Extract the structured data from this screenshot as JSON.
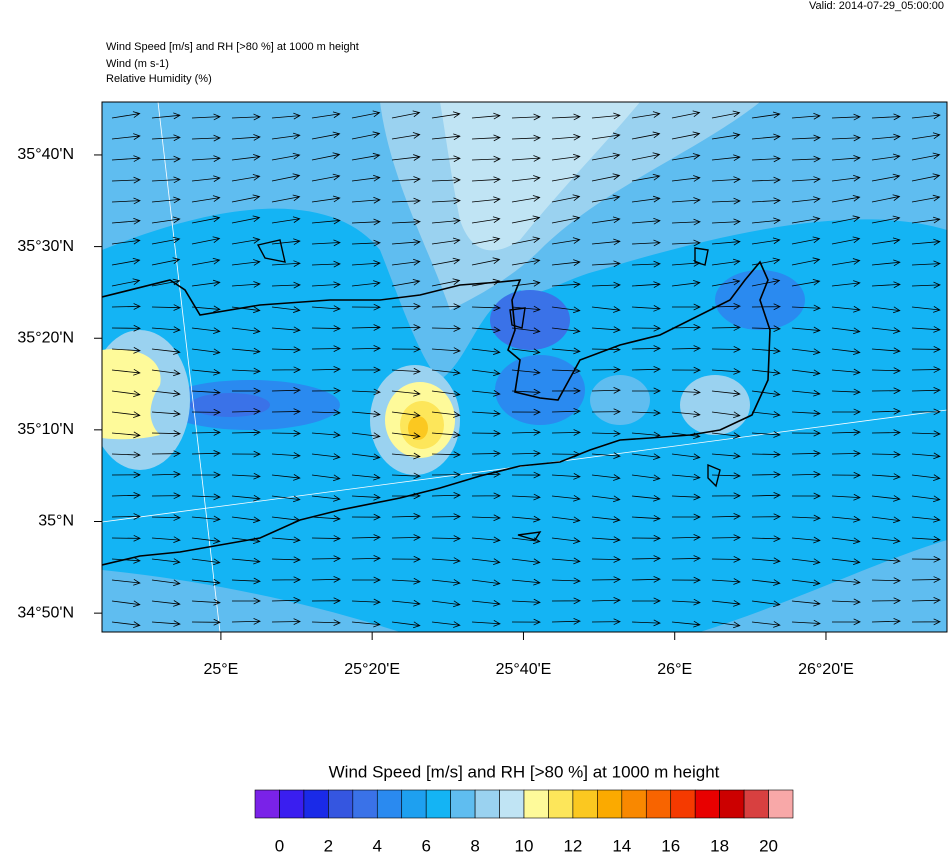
{
  "valid": "Valid: 2014-07-29_05:00:00",
  "title_lines": [
    "Wind Speed [m/s] and RH [>80 %] at 1000 m height",
    "Wind   (m s-1)",
    "Relative Humidity    (%)"
  ],
  "map": {
    "lonlim": [
      24.738,
      26.6
    ],
    "latlim": [
      34.799,
      35.763
    ],
    "lat_ticks": [
      {
        "value": 35.6667,
        "label": "35°40'N"
      },
      {
        "value": 35.5,
        "label": "35°30'N"
      },
      {
        "value": 35.3333,
        "label": "35°20'N"
      },
      {
        "value": 35.1667,
        "label": "35°10'N"
      },
      {
        "value": 35.0,
        "label": "35°N"
      },
      {
        "value": 34.8333,
        "label": "34°50'N"
      }
    ],
    "lon_ticks": [
      {
        "value": 25.0,
        "label": "25°E"
      },
      {
        "value": 25.3333,
        "label": "25°20'E"
      },
      {
        "value": 25.6667,
        "label": "25°40'E"
      },
      {
        "value": 26.0,
        "label": "26°E"
      },
      {
        "value": 26.3333,
        "label": "26°20'E"
      }
    ]
  },
  "colorbar": {
    "title": "Wind Speed [m/s] and RH [>80 %] at 1000 m height",
    "colors": [
      "#7a22e8",
      "#3a1ef0",
      "#1a2ae8",
      "#3556e0",
      "#3a72e8",
      "#2a8af0",
      "#1ea0f0",
      "#14b4f4",
      "#5fbdf0",
      "#9ad2f0",
      "#c0e4f4",
      "#fefa9a",
      "#fde65a",
      "#fbc820",
      "#fbaa00",
      "#f98800",
      "#f86400",
      "#f53a00",
      "#e80000",
      "#cc0000",
      "#d84040",
      "#f8a8a8"
    ],
    "ticks": [
      0,
      2,
      4,
      6,
      8,
      10,
      12,
      14,
      16,
      18,
      20
    ]
  }
}
